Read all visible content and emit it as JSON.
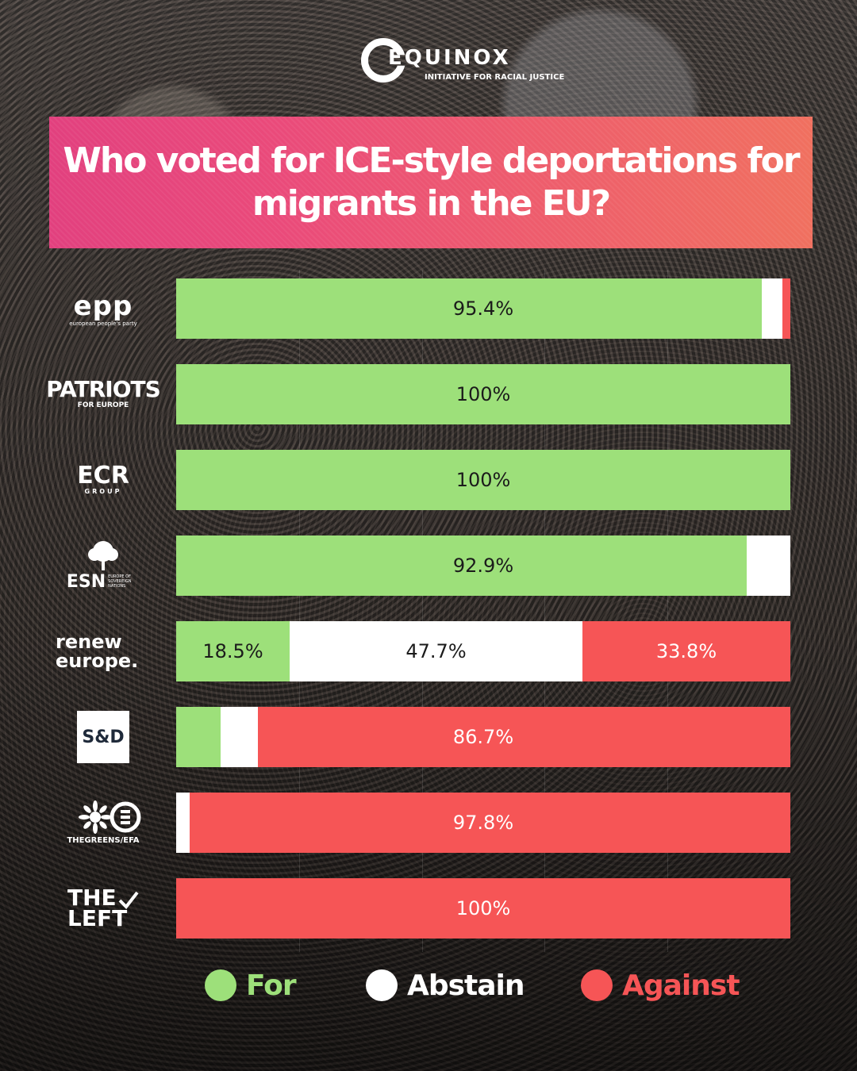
{
  "brand": {
    "name": "EQUINOX",
    "tagline": "INITIATIVE FOR RACIAL JUSTICE"
  },
  "title": "Who voted for ICE-style deportations for migrants in the EU?",
  "colors": {
    "for": "#9de07a",
    "abstain": "#ffffff",
    "against": "#f65556",
    "title_background": "#e9497a"
  },
  "legend": [
    {
      "key": "for",
      "label": "For",
      "color": "#9de07a"
    },
    {
      "key": "abstain",
      "label": "Abstain",
      "color": "#ffffff"
    },
    {
      "key": "against",
      "label": "Against",
      "color": "#f65556"
    }
  ],
  "party_logos": {
    "epp": {
      "main": "epp",
      "sub": "european people's party"
    },
    "patriots": {
      "main": "PATRIOTS",
      "sub": "FOR EUROPE"
    },
    "ecr": {
      "main": "ECR",
      "sub": "GROUP"
    },
    "esn": {
      "main": "ESN",
      "sub": "EUROPE OF SOVEREIGN NATIONS"
    },
    "renew": {
      "main": "renew europe."
    },
    "sd": {
      "main": "S&D"
    },
    "greens": {
      "main": "THEGREENS/EFA"
    },
    "left": {
      "main": "THE LEFT"
    }
  },
  "chart_data": {
    "type": "bar",
    "orientation": "horizontal",
    "stacked": true,
    "normalized": true,
    "categories": [
      "epp",
      "PATRIOTS FOR EUROPE",
      "ECR GROUP",
      "ESN",
      "renew europe.",
      "S&D",
      "THEGREENS/EFA",
      "THE LEFT"
    ],
    "series": [
      {
        "name": "For",
        "values": [
          95.4,
          100,
          100,
          92.9,
          18.5,
          7.2,
          0,
          0
        ]
      },
      {
        "name": "Abstain",
        "values": [
          3.4,
          0,
          0,
          7.1,
          47.7,
          6.1,
          2.2,
          0
        ]
      },
      {
        "name": "Against",
        "values": [
          1.2,
          0,
          0,
          0,
          33.8,
          86.7,
          97.8,
          100
        ]
      }
    ],
    "data_labels": [
      [
        "95.4%",
        "",
        ""
      ],
      [
        "100%",
        "",
        ""
      ],
      [
        "100%",
        "",
        ""
      ],
      [
        "92.9%",
        "",
        ""
      ],
      [
        "18.5%",
        "47.7%",
        "33.8%"
      ],
      [
        "",
        "",
        "86.7%"
      ],
      [
        "",
        "",
        "97.8%"
      ],
      [
        "",
        "",
        "100%"
      ]
    ],
    "xlim": [
      0,
      100
    ],
    "grid": true,
    "legend_position": "bottom"
  }
}
